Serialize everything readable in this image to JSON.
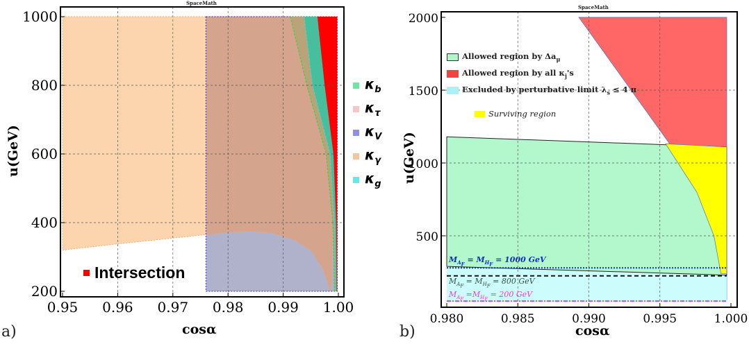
{
  "chart_data": [
    {
      "type": "area",
      "panel_label": "a)",
      "title": "SpaceMath",
      "xlabel": "cosα",
      "ylabel": "u(GeV)",
      "xlim": [
        0.95,
        1.0
      ],
      "ylim": [
        200,
        1000
      ],
      "xticks": [
        "0.95",
        "0.96",
        "0.97",
        "0.98",
        "0.99",
        "1.00"
      ],
      "xtick_values": [
        0.95,
        0.96,
        0.97,
        0.98,
        0.99,
        1.0
      ],
      "yticks": [
        "200",
        "400",
        "600",
        "800",
        "1000"
      ],
      "ytick_values": [
        200,
        400,
        600,
        800,
        1000
      ],
      "grid": true,
      "legend": [
        {
          "symbol": "κ",
          "sub": "b",
          "color": "#3ddc84"
        },
        {
          "symbol": "κ",
          "sub": "τ",
          "color": "#f4b0b8"
        },
        {
          "symbol": "κ",
          "sub": "V",
          "color": "#6a6ad8"
        },
        {
          "symbol": "κ",
          "sub": "γ",
          "color": "#f2b27a"
        },
        {
          "symbol": "κ",
          "sub": "g",
          "color": "#30e0e0"
        }
      ],
      "legend_placement": "right-outside",
      "intersection_label": "Intersection",
      "intersection_color": "#ff0000",
      "regions": {
        "kappa_V_rect": {
          "x": [
            0.976,
            0.9998
          ],
          "y": [
            200,
            1000
          ],
          "color": "#b0b2cc"
        },
        "kappa_gamma_lower_boundary": [
          [
            0.95,
            320
          ],
          [
            0.96,
            338
          ],
          [
            0.97,
            355
          ],
          [
            0.976,
            365
          ],
          [
            0.98,
            372
          ],
          [
            0.984,
            375
          ],
          [
            0.988,
            370
          ],
          [
            0.992,
            350
          ],
          [
            0.995,
            320
          ],
          [
            0.997,
            270
          ],
          [
            0.998,
            230
          ],
          [
            0.9985,
            200
          ]
        ],
        "kappa_gamma_color": "#fcd5ae",
        "overlap_color": "#d4a48d",
        "kappa_b_boundary": [
          [
            0.9913,
            1000
          ],
          [
            0.9943,
            800
          ],
          [
            0.9978,
            600
          ],
          [
            0.999,
            400
          ],
          [
            0.9993,
            200
          ]
        ],
        "kappa_g_boundary": [
          [
            0.9938,
            1000
          ],
          [
            0.9953,
            800
          ],
          [
            0.9985,
            600
          ],
          [
            0.9993,
            400
          ],
          [
            0.9995,
            200
          ]
        ],
        "intersection_boundary": [
          [
            0.9962,
            1000
          ],
          [
            0.9975,
            800
          ],
          [
            0.9991,
            600
          ],
          [
            0.9996,
            400
          ],
          [
            0.9997,
            200
          ]
        ],
        "right_edge": 0.9998,
        "band_colors": {
          "kb_band": "#b9a47a",
          "kg_band": "#48bf9c",
          "intersection": "#ff0000"
        }
      }
    },
    {
      "type": "area",
      "panel_label": "b)",
      "title": "SpaceMath",
      "xlabel": "cosα",
      "ylabel": "u(GeV)",
      "xlim": [
        0.98,
        1.0
      ],
      "ylim": [
        0,
        2000
      ],
      "xticks": [
        "0.980",
        "0.985",
        "0.990",
        "0.995",
        "1.000"
      ],
      "xtick_values": [
        0.98,
        0.985,
        0.99,
        0.995,
        1.0
      ],
      "yticks": [
        "500",
        "1000",
        "1500",
        "2000"
      ],
      "ytick_values": [
        500,
        1000,
        1500,
        2000
      ],
      "grid": true,
      "legend": [
        {
          "text": "Allowed region by Δa",
          "sub": "μ",
          "suffix": "",
          "color": "#b3f5c8"
        },
        {
          "text": "Allowed region by all κ",
          "sub": "j",
          "suffix": "'s",
          "color": "#ee4444"
        },
        {
          "text": "Excluded by perturbative limit λ",
          "sub": "s",
          "suffix": " ≤ 4 π",
          "color": "#aaf2f8"
        },
        {
          "text": "Surviving region",
          "sub": "",
          "suffix": "",
          "color": "#ffff00"
        }
      ],
      "legend_placement": "top-left",
      "regions": {
        "red": {
          "points": [
            [
              0.9893,
              2000
            ],
            [
              0.9997,
              2000
            ],
            [
              0.9997,
              60
            ],
            [
              0.9993,
              230
            ],
            [
              0.9988,
              500
            ],
            [
              0.9976,
              800
            ],
            [
              0.9957,
              1130
            ]
          ],
          "color": "#ff6666"
        },
        "cyan": {
          "points": [
            [
              0.98,
              50
            ],
            [
              0.9997,
              50
            ],
            [
              0.9997,
              230
            ],
            [
              0.98,
              290
            ]
          ],
          "color": "#ccfcfc"
        },
        "green": {
          "points": [
            [
              0.98,
              1180
            ],
            [
              0.9997,
              1110
            ],
            [
              0.9997,
              230
            ],
            [
              0.98,
              290
            ]
          ],
          "color": "#b3f8cc"
        },
        "yellow": {
          "points": [
            [
              0.9954,
              1132
            ],
            [
              0.9997,
              1110
            ],
            [
              0.9997,
              240
            ],
            [
              0.9993,
              240
            ],
            [
              0.9988,
              500
            ],
            [
              0.9976,
              800
            ]
          ],
          "color": "#ffff00"
        }
      },
      "mass_lines": [
        {
          "label_pre": "M",
          "sub1": "A",
          "subsub1": "F",
          "mid": " = M",
          "sub2": "H",
          "subsub2": "F",
          "post": " = 1000 GeV",
          "y": 280,
          "style": "dotted",
          "color": "#1030c0"
        },
        {
          "label_pre": "M",
          "sub1": "A",
          "subsub1": "F",
          "mid": " = M",
          "sub2": "H",
          "subsub2": "F",
          "post": " = 800 GeV",
          "y": 225,
          "style": "dashed",
          "color": "#111111"
        },
        {
          "label_pre": "M",
          "sub1": "A",
          "subsub1": "F",
          "mid": " =M",
          "sub2": "H",
          "subsub2": "F",
          "post": " = 200 GeV",
          "y": 52,
          "style": "dashdot",
          "color": "#e040e0"
        }
      ]
    }
  ]
}
